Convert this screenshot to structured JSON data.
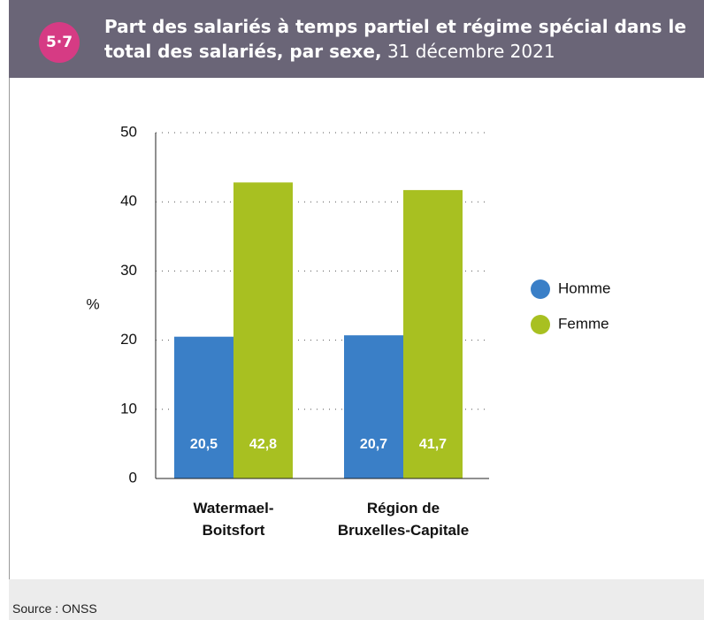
{
  "badge": "5·7",
  "source": "Source : ONSS",
  "chart_data": {
    "type": "bar",
    "title": "Part des salariés à temps partiel et régime spécial dans le total des salariés, par sexe,",
    "subtitle": "31 décembre 2021",
    "y_label": "%",
    "categories": [
      "Watermael-Boitsfort",
      "Région de Bruxelles-Capitale"
    ],
    "series": [
      {
        "name": "Homme",
        "color": "#3a7fc7",
        "values": [
          20.5,
          20.7
        ],
        "value_labels": [
          "20,5",
          "20,7"
        ]
      },
      {
        "name": "Femme",
        "color": "#a8c021",
        "values": [
          42.8,
          41.7
        ],
        "value_labels": [
          "42,8",
          "41,7"
        ]
      }
    ],
    "ylim": [
      0,
      50
    ],
    "yticks": [
      0,
      10,
      20,
      30,
      40,
      50
    ],
    "grid": true,
    "legend": "right"
  }
}
